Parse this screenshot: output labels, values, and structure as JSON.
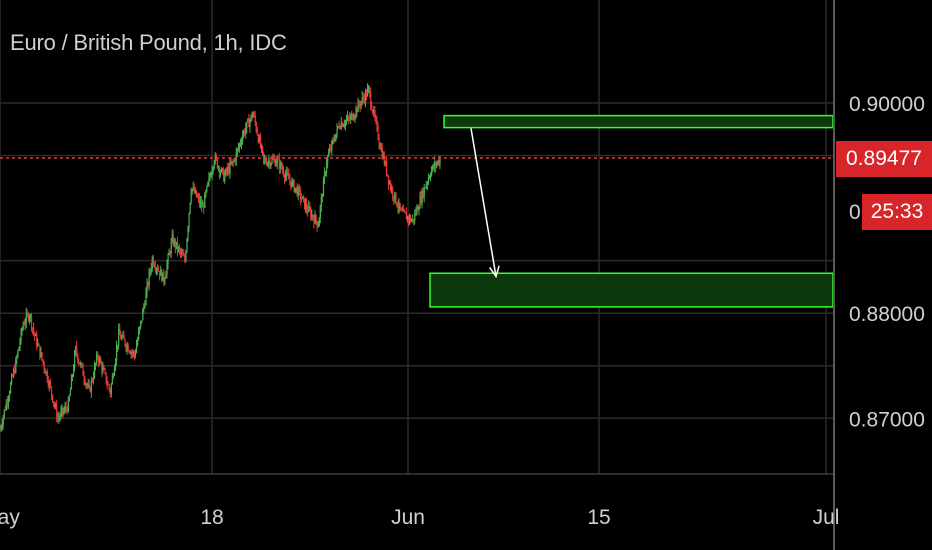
{
  "header": {
    "title": "Euro / British Pound, 1h, IDC"
  },
  "price_axis": {
    "current_price_label": "0.89477",
    "partial_label": "0.",
    "countdown": "25:33"
  },
  "colors": {
    "background": "#000000",
    "grid": "#2b2b2b",
    "axis_text": "#d0d0d0",
    "bull_candle": "#4caf50",
    "bear_candle": "#e5393a",
    "current_price_line": "#e5393a",
    "price_tag": "#d8252a",
    "zone_fill": "#0c3a0c",
    "zone_border": "#33ff33",
    "arrow": "#ffffff"
  },
  "chart_data": {
    "type": "candlestick",
    "title": "Euro / British Pound, 1h, IDC",
    "ylim": [
      0.8647,
      0.9098
    ],
    "y_ticks": [
      0.9,
      0.88,
      0.87
    ],
    "y_tick_labels": [
      "0.90000",
      "0.88000",
      "0.87000"
    ],
    "x_tick_labels": [
      "May",
      "18",
      "Jun",
      "15",
      "Jul"
    ],
    "current_price": 0.89477,
    "grid": true,
    "price_path": [
      [
        0,
        0.869
      ],
      [
        1.5,
        0.8752
      ],
      [
        2.2,
        0.879
      ],
      [
        2.8,
        0.88
      ],
      [
        3.2,
        0.8782
      ],
      [
        4.5,
        0.874
      ],
      [
        5.5,
        0.87
      ],
      [
        6.5,
        0.8712
      ],
      [
        7.2,
        0.8765
      ],
      [
        8.5,
        0.8725
      ],
      [
        9.3,
        0.876
      ],
      [
        10.5,
        0.8725
      ],
      [
        11.3,
        0.878
      ],
      [
        12.8,
        0.876
      ],
      [
        13.4,
        0.879
      ],
      [
        14.5,
        0.8852
      ],
      [
        15.6,
        0.8832
      ],
      [
        16.4,
        0.887
      ],
      [
        17.6,
        0.885
      ],
      [
        18.2,
        0.892
      ],
      [
        19.3,
        0.89
      ],
      [
        20.4,
        0.8948
      ],
      [
        21.3,
        0.893
      ],
      [
        22.3,
        0.8945
      ],
      [
        23.1,
        0.897
      ],
      [
        24.1,
        0.899
      ],
      [
        25.1,
        0.8945
      ],
      [
        26.4,
        0.8945
      ],
      [
        27.3,
        0.893
      ],
      [
        28.4,
        0.8915
      ],
      [
        29.2,
        0.89
      ],
      [
        30.3,
        0.8885
      ],
      [
        31.1,
        0.8945
      ],
      [
        32.3,
        0.898
      ],
      [
        33.4,
        0.8985
      ],
      [
        34.3,
        0.9
      ],
      [
        35.1,
        0.9012
      ],
      [
        36.2,
        0.896
      ],
      [
        37.2,
        0.892
      ],
      [
        38.2,
        0.8895
      ],
      [
        39.3,
        0.8888
      ],
      [
        40.1,
        0.891
      ],
      [
        41.0,
        0.8935
      ],
      [
        42.0,
        0.8948
      ]
    ],
    "zones": [
      {
        "name": "supply",
        "y_top": 0.8988,
        "y_bottom": 0.8982
      },
      {
        "name": "demand",
        "y_top": 0.8838,
        "y_bottom": 0.8806
      }
    ],
    "arrow": {
      "from_y": 0.8976,
      "to_y": 0.8835
    }
  }
}
